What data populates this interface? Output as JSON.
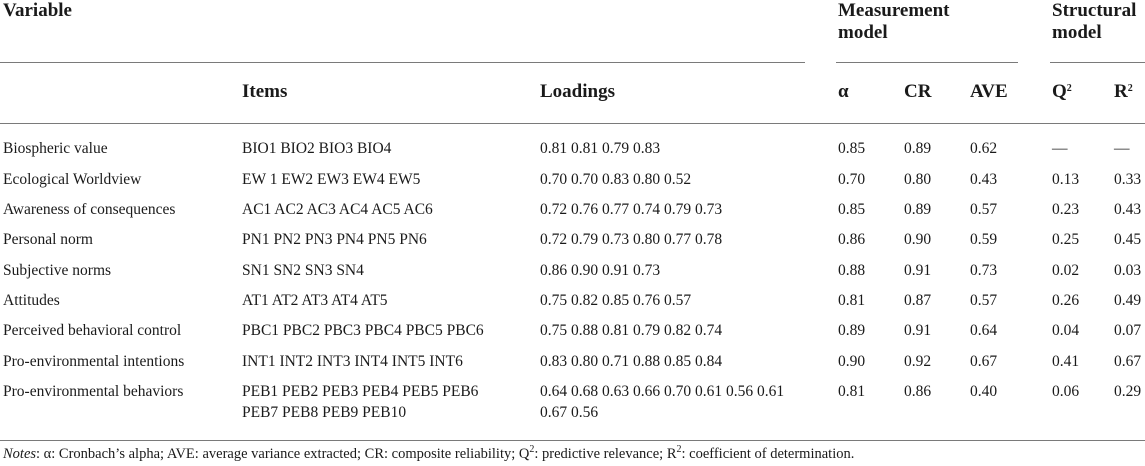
{
  "header": {
    "variable": "Variable",
    "measurement_model": [
      "Measurement",
      "model"
    ],
    "structural_model": [
      "Structural",
      "model"
    ],
    "items": "Items",
    "loadings": "Loadings",
    "alpha": "α",
    "cr": "CR",
    "ave": "AVE",
    "q2": "Q",
    "r2": "R",
    "sup2": "2"
  },
  "rows": [
    {
      "variable": "Biospheric value",
      "items": [
        "BIO1 BIO2 BIO3 BIO4"
      ],
      "loadings": [
        "0.81 0.81 0.79 0.83"
      ],
      "alpha": "0.85",
      "cr": "0.89",
      "ave": "0.62",
      "q2": "—",
      "r2": "—"
    },
    {
      "variable": "Ecological Worldview",
      "items": [
        "EW 1 EW2 EW3 EW4 EW5"
      ],
      "loadings": [
        "0.70 0.70 0.83 0.80 0.52"
      ],
      "alpha": "0.70",
      "cr": "0.80",
      "ave": "0.43",
      "q2": "0.13",
      "r2": "0.33"
    },
    {
      "variable": "Awareness of consequences",
      "items": [
        "AC1 AC2 AC3 AC4 AC5 AC6"
      ],
      "loadings": [
        "0.72 0.76 0.77 0.74 0.79 0.73"
      ],
      "alpha": "0.85",
      "cr": "0.89",
      "ave": "0.57",
      "q2": "0.23",
      "r2": "0.43"
    },
    {
      "variable": "Personal norm",
      "items": [
        "PN1 PN2 PN3 PN4 PN5 PN6"
      ],
      "loadings": [
        "0.72 0.79 0.73 0.80 0.77 0.78"
      ],
      "alpha": "0.86",
      "cr": "0.90",
      "ave": "0.59",
      "q2": "0.25",
      "r2": "0.45"
    },
    {
      "variable": "Subjective norms",
      "items": [
        "SN1 SN2 SN3 SN4"
      ],
      "loadings": [
        "0.86 0.90 0.91 0.73"
      ],
      "alpha": "0.88",
      "cr": "0.91",
      "ave": "0.73",
      "q2": "0.02",
      "r2": "0.03"
    },
    {
      "variable": "Attitudes",
      "items": [
        "AT1 AT2 AT3 AT4 AT5"
      ],
      "loadings": [
        "0.75 0.82 0.85 0.76 0.57"
      ],
      "alpha": "0.81",
      "cr": "0.87",
      "ave": "0.57",
      "q2": "0.26",
      "r2": "0.49"
    },
    {
      "variable": "Perceived behavioral control",
      "items": [
        "PBC1 PBC2 PBC3 PBC4 PBC5 PBC6"
      ],
      "loadings": [
        "0.75 0.88 0.81 0.79 0.82 0.74"
      ],
      "alpha": "0.89",
      "cr": "0.91",
      "ave": "0.64",
      "q2": "0.04",
      "r2": "0.07"
    },
    {
      "variable": "Pro-environmental intentions",
      "items": [
        "INT1 INT2 INT3 INT4 INT5 INT6"
      ],
      "loadings": [
        "0.83 0.80 0.71 0.88 0.85 0.84"
      ],
      "alpha": "0.90",
      "cr": "0.92",
      "ave": "0.67",
      "q2": "0.41",
      "r2": "0.67"
    },
    {
      "variable": "Pro-environmental behaviors",
      "items": [
        "PEB1 PEB2 PEB3 PEB4 PEB5 PEB6",
        "PEB7 PEB8 PEB9 PEB10"
      ],
      "loadings": [
        "0.64 0.68 0.63 0.66 0.70 0.61 0.56 0.61",
        "0.67 0.56"
      ],
      "alpha": "0.81",
      "cr": "0.86",
      "ave": "0.40",
      "q2": "0.06",
      "r2": "0.29"
    }
  ],
  "notes": {
    "label": "Notes",
    "text_before_q": ": α: Cronbach’s alpha; AVE: average variance extracted; CR: composite reliability; Q",
    "sup_q": "2",
    "text_mid": ": predictive relevance; R",
    "sup_r": "2",
    "text_after": ": coefficient of determination."
  }
}
